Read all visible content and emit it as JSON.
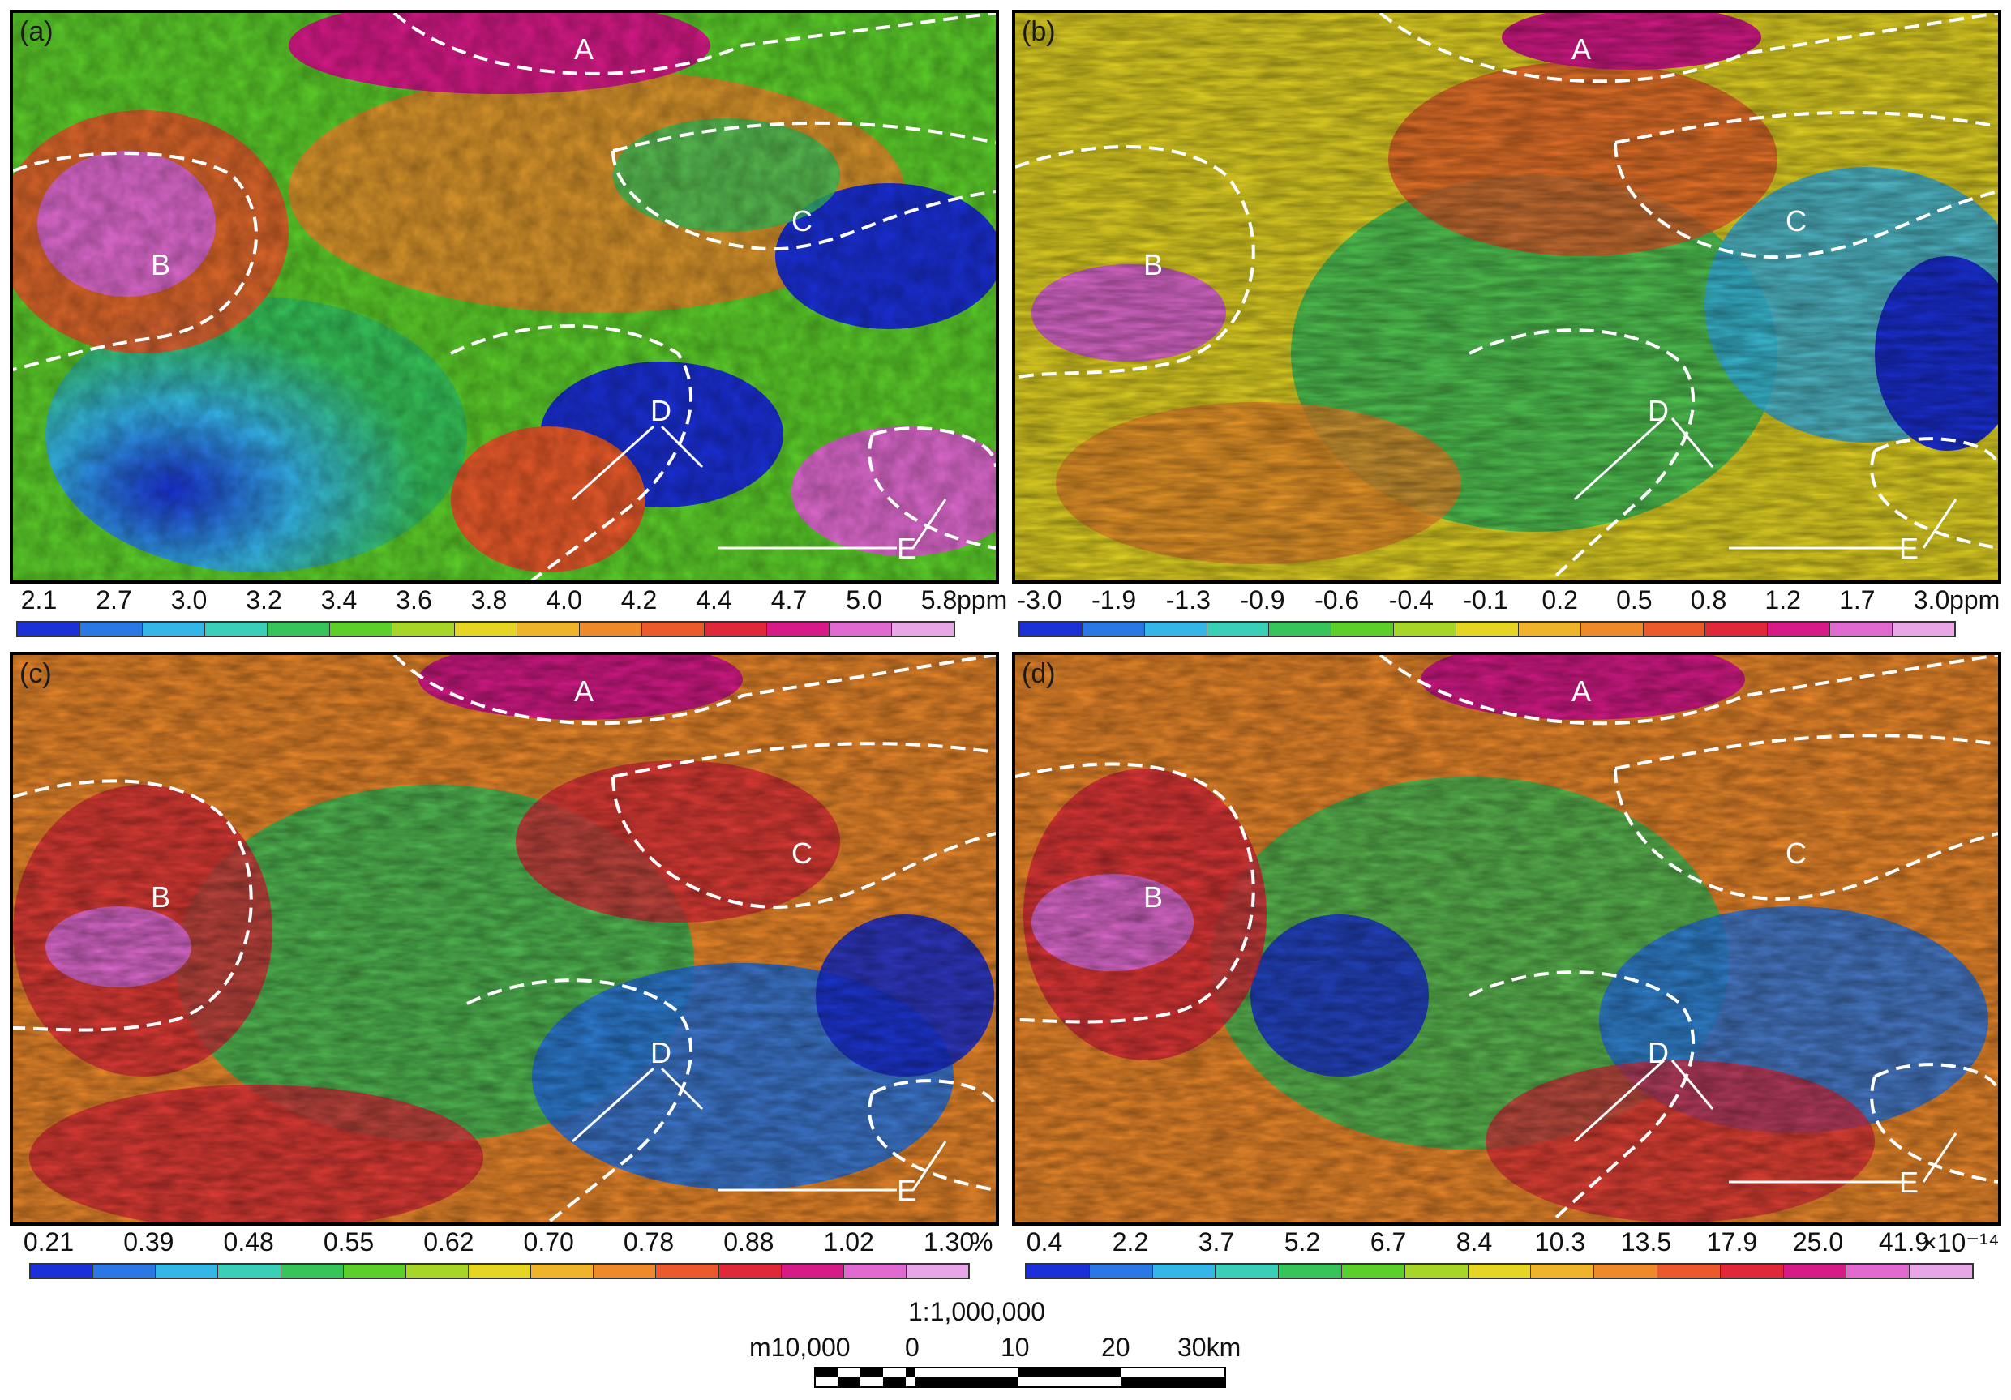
{
  "panels": [
    {
      "label": "(a)",
      "unit": "ppm",
      "ticks": [
        "2.1",
        "2.7",
        "3.0",
        "3.2",
        "3.4",
        "3.6",
        "3.8",
        "4.0",
        "4.2",
        "4.4",
        "4.7",
        "5.0",
        "5.8"
      ],
      "zones": [
        "A",
        "B",
        "C",
        "D",
        "E"
      ]
    },
    {
      "label": "(b)",
      "unit": "ppm",
      "ticks": [
        "-3.0",
        "-1.9",
        "-1.3",
        "-0.9",
        "-0.6",
        "-0.4",
        "-0.1",
        "0.2",
        "0.5",
        "0.8",
        "1.2",
        "1.7",
        "3.0"
      ],
      "zones": [
        "A",
        "B",
        "C",
        "D",
        "E"
      ]
    },
    {
      "label": "(c)",
      "unit": "%",
      "ticks": [
        "0.21",
        "0.39",
        "0.48",
        "0.55",
        "0.62",
        "0.70",
        "0.78",
        "0.88",
        "1.02",
        "1.30"
      ],
      "zones": [
        "A",
        "B",
        "C",
        "D",
        "E"
      ]
    },
    {
      "label": "(d)",
      "unit": "×10⁻¹⁴",
      "ticks": [
        "0.4",
        "2.2",
        "3.7",
        "5.2",
        "6.7",
        "8.4",
        "10.3",
        "13.5",
        "17.9",
        "25.0",
        "41.9"
      ],
      "zones": [
        "A",
        "B",
        "C",
        "D",
        "E"
      ]
    }
  ],
  "colorbar_colors": [
    "#1a2fd6",
    "#2a78e6",
    "#35b6e8",
    "#3ad0b8",
    "#36c45a",
    "#5ccf2a",
    "#a8d626",
    "#e6d623",
    "#f0b42a",
    "#ef8a2b",
    "#ea5a2a",
    "#e0283a",
    "#d81a88",
    "#e06ad0",
    "#e8a6e6"
  ],
  "scalebar": {
    "ratio": "1:1,000,000",
    "unit_prefix": "m10,000",
    "ticks": [
      "0",
      "10",
      "20",
      "30km"
    ]
  }
}
